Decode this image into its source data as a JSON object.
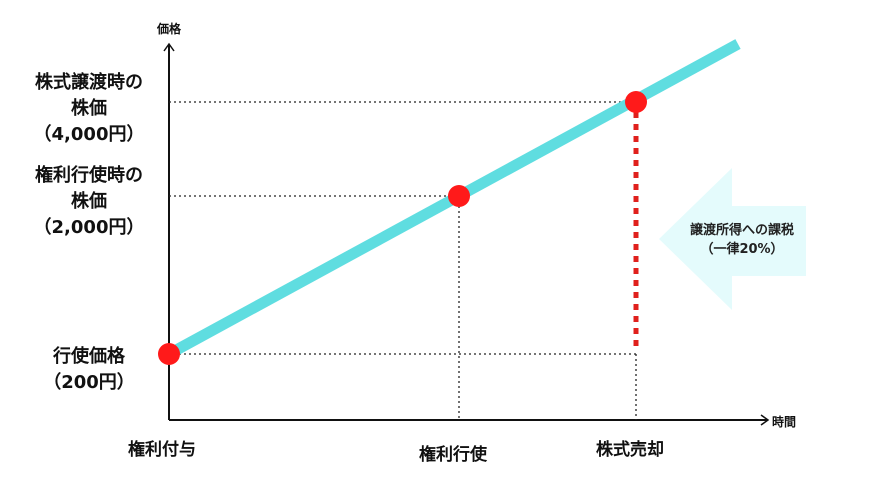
{
  "axes": {
    "y_title": "価格",
    "x_title": "時間"
  },
  "y_labels": {
    "sale_price": [
      "株式譲渡時の",
      "株価",
      "（4,000円）"
    ],
    "exercise_price_stock": [
      "権利行使時の",
      "株価",
      "（2,000円）"
    ],
    "strike_price": [
      "行使価格",
      "（200円）"
    ]
  },
  "x_labels": {
    "grant": "権利付与",
    "exercise": "権利行使",
    "sale": "株式売却"
  },
  "annotation": {
    "line1": "譲渡所得への課税",
    "line2": "（一律20%）"
  },
  "colors": {
    "price_line": "#5fdde0",
    "points": "#ff1a1a",
    "tax_dashed": "#e0201c",
    "arrow_fill": "#e4fbfc"
  }
}
